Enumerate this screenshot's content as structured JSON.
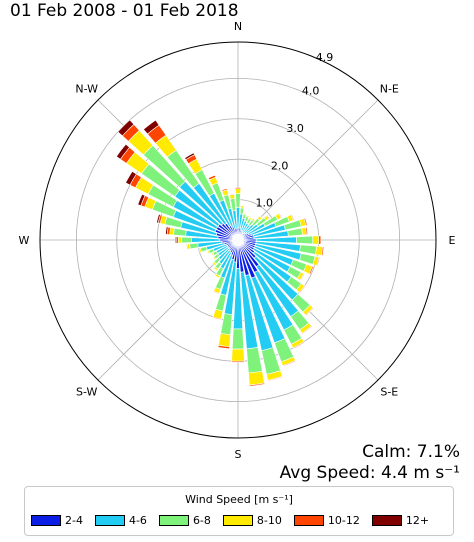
{
  "title": "01 Feb 2008 - 01 Feb 2018",
  "calm_text": "Calm: 7.1%",
  "avg_text": "Avg Speed: 4.4 m s⁻¹",
  "chart_data": {
    "type": "windrose",
    "directions": [
      "N",
      "NNE",
      "NE",
      "ENE",
      "E",
      "ESE",
      "SE",
      "SSE",
      "S",
      "SSW",
      "SW",
      "WSW",
      "W",
      "WNW",
      "NW",
      "NNW"
    ],
    "direction_labels": [
      "N",
      "N-E",
      "E",
      "S-E",
      "S",
      "S-W",
      "W",
      "N-W"
    ],
    "radial_ticks": [
      1.0,
      2.0,
      3.0,
      4.0,
      4.9
    ],
    "rmax": 4.9,
    "bins": [
      {
        "name": "2-4",
        "color": "#0a1ee6"
      },
      {
        "name": "4-6",
        "color": "#22ccf2"
      },
      {
        "name": "6-8",
        "color": "#7ef27a"
      },
      {
        "name": "8-10",
        "color": "#ffea00"
      },
      {
        "name": "10-12",
        "color": "#ff4500"
      },
      {
        "name": "12+",
        "color": "#800000"
      }
    ],
    "legend_title": "Wind Speed [m s⁻¹]",
    "sectors_per_direction": 3,
    "values": [
      [
        [
          0.28,
          0.45,
          0.3,
          0.1,
          0.02,
          0.0
        ],
        [
          0.3,
          0.5,
          0.35,
          0.12,
          0.03,
          0.0
        ],
        [
          0.3,
          0.35,
          0.15,
          0.05,
          0.0,
          0.0
        ]
      ],
      [
        [
          0.25,
          0.3,
          0.1,
          0.03,
          0.0,
          0.0
        ],
        [
          0.22,
          0.28,
          0.12,
          0.03,
          0.0,
          0.0
        ],
        [
          0.22,
          0.25,
          0.12,
          0.04,
          0.0,
          0.0
        ]
      ],
      [
        [
          0.2,
          0.25,
          0.15,
          0.05,
          0.01,
          0.0
        ],
        [
          0.22,
          0.3,
          0.2,
          0.08,
          0.01,
          0.0
        ],
        [
          0.25,
          0.35,
          0.25,
          0.08,
          0.02,
          0.0
        ]
      ],
      [
        [
          0.3,
          0.45,
          0.35,
          0.1,
          0.02,
          0.0
        ],
        [
          0.35,
          0.65,
          0.35,
          0.1,
          0.02,
          0.0
        ],
        [
          0.4,
          0.8,
          0.4,
          0.12,
          0.03,
          0.0
        ]
      ],
      [
        [
          0.4,
          0.85,
          0.35,
          0.1,
          0.03,
          0.0
        ],
        [
          0.45,
          1.0,
          0.4,
          0.15,
          0.05,
          0.0
        ],
        [
          0.45,
          1.1,
          0.4,
          0.15,
          0.03,
          0.0
        ]
      ],
      [
        [
          0.45,
          1.15,
          0.35,
          0.1,
          0.02,
          0.0
        ],
        [
          0.45,
          1.0,
          0.35,
          0.15,
          0.03,
          0.0
        ],
        [
          0.45,
          1.0,
          0.3,
          0.08,
          0.02,
          0.0
        ]
      ],
      [
        [
          0.5,
          1.1,
          0.3,
          0.1,
          0.02,
          0.0
        ],
        [
          0.6,
          1.4,
          0.4,
          0.1,
          0.02,
          0.0
        ],
        [
          0.8,
          1.5,
          0.4,
          0.1,
          0.02,
          0.0
        ]
      ],
      [
        [
          0.9,
          1.6,
          0.4,
          0.1,
          0.02,
          0.0
        ],
        [
          1.0,
          1.7,
          0.5,
          0.1,
          0.02,
          0.0
        ],
        [
          0.9,
          1.9,
          0.6,
          0.15,
          0.02,
          0.0
        ]
      ],
      [
        [
          0.8,
          1.9,
          0.6,
          0.3,
          0.03,
          0.0
        ],
        [
          0.7,
          1.5,
          0.5,
          0.3,
          0.03,
          0.0
        ],
        [
          0.55,
          1.3,
          0.5,
          0.3,
          0.05,
          0.0
        ]
      ],
      [
        [
          0.5,
          0.9,
          0.4,
          0.2,
          0.02,
          0.0
        ],
        [
          0.4,
          0.6,
          0.3,
          0.1,
          0.02,
          0.0
        ],
        [
          0.35,
          0.45,
          0.2,
          0.05,
          0.0,
          0.0
        ]
      ],
      [
        [
          0.32,
          0.4,
          0.15,
          0.05,
          0.0,
          0.0
        ],
        [
          0.3,
          0.35,
          0.15,
          0.05,
          0.0,
          0.0
        ],
        [
          0.3,
          0.3,
          0.12,
          0.03,
          0.0,
          0.0
        ]
      ],
      [
        [
          0.3,
          0.3,
          0.1,
          0.03,
          0.0,
          0.0
        ],
        [
          0.3,
          0.35,
          0.12,
          0.03,
          0.0,
          0.0
        ],
        [
          0.35,
          0.45,
          0.15,
          0.04,
          0.0,
          0.0
        ]
      ],
      [
        [
          0.4,
          0.6,
          0.2,
          0.06,
          0.02,
          0.0
        ],
        [
          0.45,
          0.7,
          0.25,
          0.08,
          0.04,
          0.03
        ],
        [
          0.5,
          0.8,
          0.3,
          0.1,
          0.06,
          0.04
        ]
      ],
      [
        [
          0.55,
          0.9,
          0.4,
          0.12,
          0.05,
          0.04
        ],
        [
          0.6,
          1.1,
          0.55,
          0.2,
          0.1,
          0.08
        ],
        [
          0.6,
          1.2,
          0.7,
          0.35,
          0.15,
          0.12
        ]
      ],
      [
        [
          0.6,
          1.3,
          1.0,
          0.45,
          0.18,
          0.12
        ],
        [
          0.55,
          1.4,
          1.2,
          0.5,
          0.2,
          0.15
        ],
        [
          0.5,
          1.2,
          1.0,
          0.45,
          0.3,
          0.15
        ]
      ],
      [
        [
          0.4,
          0.9,
          0.65,
          0.3,
          0.12,
          0.05
        ],
        [
          0.35,
          0.7,
          0.45,
          0.15,
          0.05,
          0.0
        ],
        [
          0.3,
          0.5,
          0.35,
          0.12,
          0.03,
          0.0
        ]
      ]
    ]
  }
}
